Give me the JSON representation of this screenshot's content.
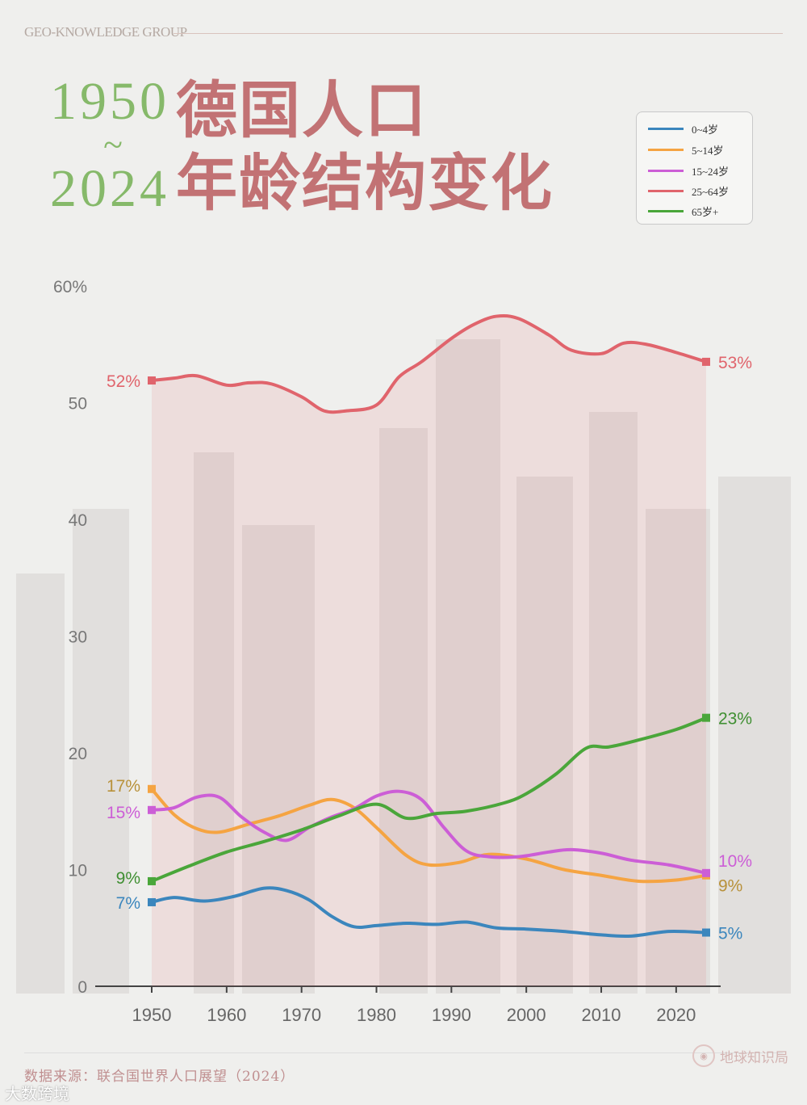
{
  "header": {
    "brand": "GEO-KNOWLEDGE GROUP"
  },
  "title": {
    "year_start": "1950",
    "tilde": "~",
    "year_end": "2024",
    "line1": "德国人口",
    "line2": "年龄结构变化"
  },
  "legend": [
    {
      "label": "0~4岁",
      "color": "#3b86bd"
    },
    {
      "label": "5~14岁",
      "color": "#f5a442"
    },
    {
      "label": "15~24岁",
      "color": "#cc5ed6"
    },
    {
      "label": "25~64岁",
      "color": "#e0646c"
    },
    {
      "label": "65岁+",
      "color": "#4aa63a"
    }
  ],
  "footer": {
    "source": "数据来源：联合国世界人口展望（2024）",
    "logo_text": "地球知识局",
    "watermark": "大数跨境"
  },
  "chart_data": {
    "type": "line",
    "xlim": [
      1950,
      2024
    ],
    "ylim": [
      0,
      60
    ],
    "x_ticks": [
      "1950",
      "1960",
      "1970",
      "1980",
      "1990",
      "2000",
      "2010",
      "2020"
    ],
    "y_ticks": [
      "0",
      "10",
      "20",
      "30",
      "40",
      "50",
      "60%"
    ],
    "series": [
      {
        "name": "25~64岁",
        "color": "#e0646c",
        "fill": true,
        "start_label": "52%",
        "end_label": "53%",
        "points": [
          [
            1950,
            51.9
          ],
          [
            1953,
            52.1
          ],
          [
            1956,
            52.3
          ],
          [
            1960,
            51.5
          ],
          [
            1963,
            51.7
          ],
          [
            1966,
            51.6
          ],
          [
            1970,
            50.5
          ],
          [
            1973,
            49.3
          ],
          [
            1976,
            49.3
          ],
          [
            1980,
            49.8
          ],
          [
            1983,
            52.2
          ],
          [
            1986,
            53.5
          ],
          [
            1990,
            55.5
          ],
          [
            1993,
            56.7
          ],
          [
            1996,
            57.4
          ],
          [
            1999,
            57.2
          ],
          [
            2003,
            55.8
          ],
          [
            2006,
            54.5
          ],
          [
            2010,
            54.2
          ],
          [
            2013,
            55.1
          ],
          [
            2016,
            55.0
          ],
          [
            2020,
            54.3
          ],
          [
            2024,
            53.5
          ]
        ]
      },
      {
        "name": "5~14岁",
        "color": "#f5a442",
        "start_label": "17%",
        "end_label": "9%",
        "points": [
          [
            1950,
            16.9
          ],
          [
            1953,
            14.7
          ],
          [
            1956,
            13.5
          ],
          [
            1959,
            13.2
          ],
          [
            1963,
            13.9
          ],
          [
            1967,
            14.6
          ],
          [
            1971,
            15.5
          ],
          [
            1974,
            16.0
          ],
          [
            1977,
            15.3
          ],
          [
            1980,
            13.6
          ],
          [
            1984,
            11.2
          ],
          [
            1987,
            10.4
          ],
          [
            1991,
            10.6
          ],
          [
            1995,
            11.3
          ],
          [
            2000,
            10.9
          ],
          [
            2005,
            10.0
          ],
          [
            2010,
            9.5
          ],
          [
            2015,
            9.0
          ],
          [
            2020,
            9.1
          ],
          [
            2024,
            9.5
          ]
        ]
      },
      {
        "name": "15~24岁",
        "color": "#cc5ed6",
        "start_label": "15%",
        "end_label": "10%",
        "points": [
          [
            1950,
            15.1
          ],
          [
            1953,
            15.3
          ],
          [
            1956,
            16.2
          ],
          [
            1959,
            16.2
          ],
          [
            1962,
            14.5
          ],
          [
            1965,
            13.2
          ],
          [
            1968,
            12.5
          ],
          [
            1971,
            13.6
          ],
          [
            1974,
            14.5
          ],
          [
            1977,
            15.2
          ],
          [
            1980,
            16.3
          ],
          [
            1983,
            16.7
          ],
          [
            1986,
            16.0
          ],
          [
            1989,
            13.6
          ],
          [
            1992,
            11.6
          ],
          [
            1995,
            11.1
          ],
          [
            1999,
            11.1
          ],
          [
            2003,
            11.5
          ],
          [
            2006,
            11.7
          ],
          [
            2010,
            11.4
          ],
          [
            2014,
            10.8
          ],
          [
            2019,
            10.4
          ],
          [
            2024,
            9.7
          ]
        ]
      },
      {
        "name": "65岁+",
        "color": "#4aa63a",
        "start_label": "9%",
        "end_label": "23%",
        "points": [
          [
            1950,
            9.0
          ],
          [
            1955,
            10.3
          ],
          [
            1960,
            11.5
          ],
          [
            1965,
            12.4
          ],
          [
            1970,
            13.4
          ],
          [
            1975,
            14.6
          ],
          [
            1980,
            15.6
          ],
          [
            1984,
            14.4
          ],
          [
            1988,
            14.8
          ],
          [
            1992,
            15.0
          ],
          [
            1997,
            15.7
          ],
          [
            2000,
            16.5
          ],
          [
            2004,
            18.2
          ],
          [
            2008,
            20.4
          ],
          [
            2011,
            20.5
          ],
          [
            2015,
            21.1
          ],
          [
            2020,
            22.0
          ],
          [
            2024,
            23.0
          ]
        ]
      },
      {
        "name": "0~4岁",
        "color": "#3b86bd",
        "start_label": "7%",
        "end_label": "5%",
        "points": [
          [
            1950,
            7.2
          ],
          [
            1953,
            7.6
          ],
          [
            1957,
            7.3
          ],
          [
            1961,
            7.7
          ],
          [
            1965,
            8.4
          ],
          [
            1968,
            8.2
          ],
          [
            1971,
            7.4
          ],
          [
            1974,
            6.0
          ],
          [
            1977,
            5.1
          ],
          [
            1980,
            5.2
          ],
          [
            1984,
            5.4
          ],
          [
            1988,
            5.3
          ],
          [
            1992,
            5.5
          ],
          [
            1996,
            5.0
          ],
          [
            2000,
            4.9
          ],
          [
            2005,
            4.7
          ],
          [
            2010,
            4.4
          ],
          [
            2014,
            4.3
          ],
          [
            2019,
            4.7
          ],
          [
            2024,
            4.6
          ]
        ]
      }
    ]
  }
}
